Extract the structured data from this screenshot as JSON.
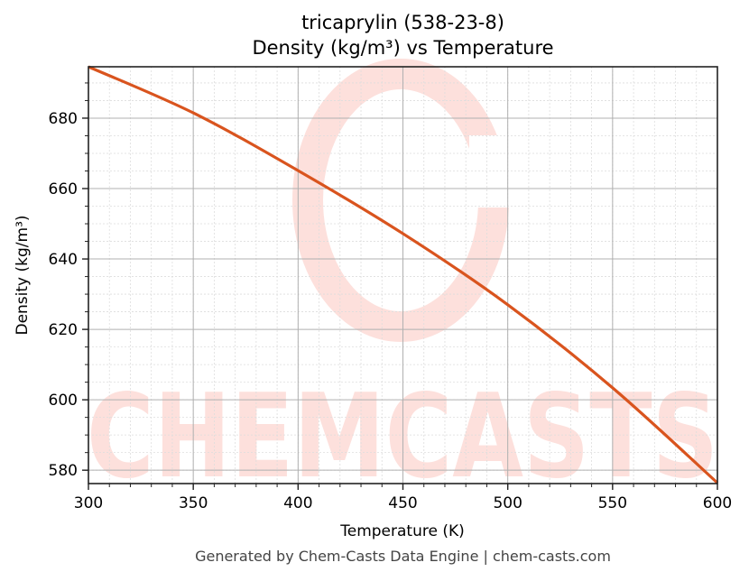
{
  "chart": {
    "title_line1": "tricaprylin (538-23-8)",
    "title_line2": "Density (kg/m³) vs Temperature",
    "xlabel": "Temperature (K)",
    "ylabel": "Density (kg/m³)",
    "footer": "Generated by Chem-Casts Data Engine | chem-casts.com",
    "watermark_text": "CHEMCASTS",
    "colors": {
      "line": "#d9541e",
      "watermark": "#fde0dc",
      "major_grid": "#b0b0b0",
      "minor_grid": "#dddddd",
      "axes": "#222222"
    }
  },
  "chart_data": {
    "type": "line",
    "title": "tricaprylin (538-23-8) Density (kg/m³) vs Temperature",
    "xlabel": "Temperature (K)",
    "ylabel": "Density (kg/m³)",
    "xlim": [
      300,
      600
    ],
    "ylim": [
      576.2,
      694.6
    ],
    "x_ticks": [
      300,
      350,
      400,
      450,
      500,
      550,
      600
    ],
    "y_ticks": [
      580,
      600,
      620,
      640,
      660,
      680
    ],
    "grid": true,
    "minor_grid": true,
    "legend": null,
    "series": [
      {
        "name": "Density",
        "x": [
          300,
          350,
          400,
          450,
          500,
          550,
          600
        ],
        "values": [
          694.6,
          681.5,
          665.1,
          647.2,
          627.0,
          603.4,
          576.4
        ]
      }
    ]
  }
}
